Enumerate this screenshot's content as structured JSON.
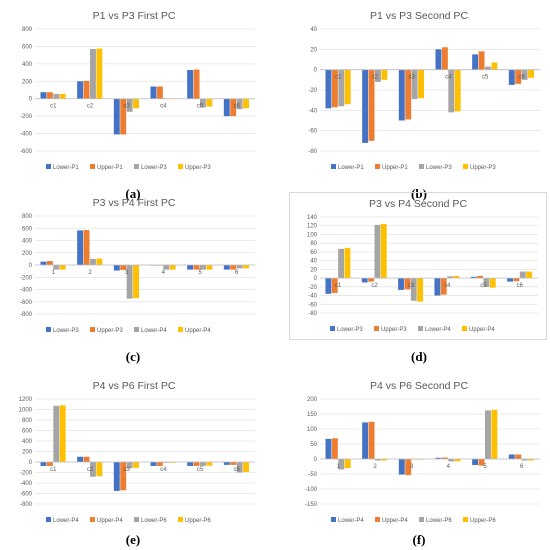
{
  "colors": [
    "#4472C4",
    "#ED7D31",
    "#A5A5A5",
    "#FFC000"
  ],
  "chart_data": [
    {
      "type": "bar",
      "title": "P1 vs P3 First PC",
      "caption": "(a)",
      "categories": [
        "c1",
        "c2",
        "c3",
        "c4",
        "c5",
        "c6"
      ],
      "ylim": [
        -600,
        800
      ],
      "yticks": [
        -600,
        -400,
        -200,
        0,
        200,
        400,
        600,
        800
      ],
      "grid": true,
      "legend": "bottom",
      "series": [
        {
          "name": "Lower-P1",
          "values": [
            75,
            200,
            -410,
            140,
            330,
            -200
          ]
        },
        {
          "name": "Upper-P1",
          "values": [
            75,
            205,
            -410,
            140,
            335,
            -200
          ]
        },
        {
          "name": "Lower-P3",
          "values": [
            55,
            570,
            -150,
            5,
            -100,
            -120
          ]
        },
        {
          "name": "Upper-P3",
          "values": [
            55,
            575,
            -110,
            5,
            -90,
            -110
          ]
        }
      ]
    },
    {
      "type": "bar",
      "title": "P1 vs P3 Second PC",
      "caption": "(b)",
      "categories": [
        "c1",
        "c2",
        "c3",
        "c4",
        "c5",
        "c6"
      ],
      "ylim": [
        -80,
        40
      ],
      "yticks": [
        -80,
        -60,
        -40,
        -20,
        0,
        20,
        40
      ],
      "grid": true,
      "legend": "bottom",
      "series": [
        {
          "name": "Lower-P1",
          "values": [
            -38,
            -72,
            -50,
            20,
            15,
            -15
          ]
        },
        {
          "name": "Upper-P1",
          "values": [
            -37,
            -70,
            -49,
            22,
            18,
            -14
          ]
        },
        {
          "name": "Lower-P3",
          "values": [
            -36,
            -12,
            -29,
            -42,
            3,
            -10
          ]
        },
        {
          "name": "Upper-P3",
          "values": [
            -34,
            -10,
            -28,
            -41,
            7,
            -8
          ]
        }
      ]
    },
    {
      "type": "bar",
      "title": "P3 vs P4 First PC",
      "caption": "(c)",
      "categories": [
        "1",
        "2",
        "3",
        "4",
        "5",
        "6"
      ],
      "ylim": [
        -800,
        800
      ],
      "yticks": [
        -800,
        -600,
        -400,
        -200,
        0,
        200,
        400,
        600,
        800
      ],
      "grid": true,
      "legend": "bottom",
      "series": [
        {
          "name": "Lower-P3",
          "values": [
            55,
            565,
            -90,
            -10,
            -75,
            -75
          ]
        },
        {
          "name": "Upper-P3",
          "values": [
            65,
            570,
            -80,
            -10,
            -75,
            -75
          ]
        },
        {
          "name": "Lower-P4",
          "values": [
            -75,
            100,
            -550,
            -75,
            -75,
            -55
          ]
        },
        {
          "name": "Upper-P4",
          "values": [
            -75,
            105,
            -540,
            -75,
            -75,
            -55
          ]
        }
      ]
    },
    {
      "type": "bar",
      "title": "P3 vs P4 Second PC",
      "caption": "(d)",
      "categories": [
        "c1",
        "c2",
        "c3",
        "c4",
        "c5",
        "c6"
      ],
      "ylim": [
        -80,
        140
      ],
      "yticks": [
        -80,
        -60,
        -40,
        -20,
        0,
        20,
        40,
        60,
        80,
        100,
        120,
        140
      ],
      "grid": true,
      "legend": "bottom",
      "series": [
        {
          "name": "Lower-P3",
          "values": [
            -36,
            -10,
            -27,
            -40,
            3,
            -8
          ]
        },
        {
          "name": "Upper-P3",
          "values": [
            -34,
            -8,
            -26,
            -38,
            5,
            -7
          ]
        },
        {
          "name": "Lower-P4",
          "values": [
            67,
            122,
            -52,
            4,
            -20,
            15
          ]
        },
        {
          "name": "Upper-P4",
          "values": [
            69,
            124,
            -54,
            5,
            -22,
            15
          ]
        }
      ]
    },
    {
      "type": "bar",
      "title": "P4 vs P6 First PC",
      "caption": "(e)",
      "categories": [
        "c1",
        "c2",
        "c3",
        "c4",
        "c5",
        "c6"
      ],
      "ylim": [
        -800,
        1200
      ],
      "yticks": [
        -800,
        -600,
        -400,
        -200,
        0,
        200,
        400,
        600,
        800,
        1000,
        1200
      ],
      "grid": true,
      "legend": "bottom",
      "series": [
        {
          "name": "Lower-P4",
          "values": [
            -75,
            100,
            -550,
            -75,
            -75,
            -55
          ]
        },
        {
          "name": "Upper-P4",
          "values": [
            -75,
            100,
            -540,
            -75,
            -75,
            -55
          ]
        },
        {
          "name": "Lower-P6",
          "values": [
            1070,
            -280,
            -120,
            -15,
            -75,
            -200
          ]
        },
        {
          "name": "Upper-P6",
          "values": [
            1080,
            -270,
            -110,
            -15,
            -70,
            -190
          ]
        }
      ]
    },
    {
      "type": "bar",
      "title": "P4 vs P6 Second PC",
      "caption": "(f)",
      "categories": [
        "1",
        "2",
        "3",
        "4",
        "5",
        "6"
      ],
      "ylim": [
        -150,
        200
      ],
      "yticks": [
        -150,
        -100,
        -50,
        0,
        50,
        100,
        150,
        200
      ],
      "grid": true,
      "legend": "bottom",
      "series": [
        {
          "name": "Lower-P4",
          "values": [
            67,
            122,
            -52,
            4,
            -20,
            15
          ]
        },
        {
          "name": "Upper-P4",
          "values": [
            69,
            124,
            -54,
            5,
            -22,
            15
          ]
        },
        {
          "name": "Lower-P6",
          "values": [
            -35,
            -5,
            -2,
            -8,
            162,
            -5
          ]
        },
        {
          "name": "Upper-P6",
          "values": [
            -30,
            -5,
            -2,
            -8,
            164,
            -5
          ]
        }
      ]
    }
  ]
}
